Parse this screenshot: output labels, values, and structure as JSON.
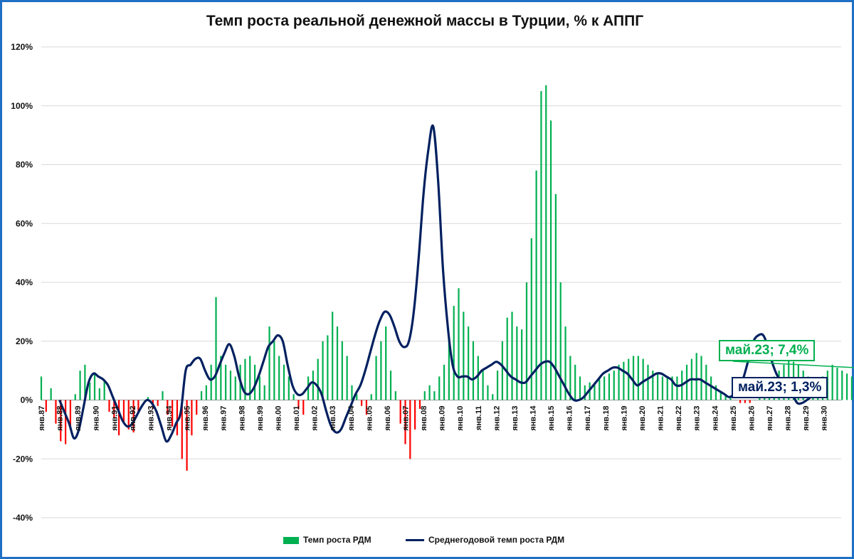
{
  "chart_data": {
    "type": "bar+line",
    "title": "Темп роста реальной денежной массы в Турции, % к АППГ",
    "ylim": [
      -40,
      120
    ],
    "y_ticks": [
      "-40%",
      "-20%",
      "0%",
      "20%",
      "40%",
      "60%",
      "80%",
      "100%",
      "120%"
    ],
    "x_tick_labels": [
      "янв.87",
      "янв.88",
      "янв.89",
      "янв.90",
      "янв.91",
      "янв.92",
      "янв.93",
      "янв.94",
      "янв.95",
      "янв.96",
      "янв.97",
      "янв.98",
      "янв.99",
      "янв.00",
      "янв.01",
      "янв.02",
      "янв.03",
      "янв.04",
      "янв.05",
      "янв.06",
      "янв.07",
      "янв.08",
      "янв.09",
      "янв.10",
      "янв.11",
      "янв.12",
      "янв.13",
      "янв.14",
      "янв.15",
      "янв.16",
      "янв.17",
      "янв.18",
      "янв.19",
      "янв.20",
      "янв.21",
      "янв.22",
      "янв.23",
      "янв.24",
      "янв.25",
      "янв.26",
      "янв.27",
      "янв.28",
      "янв.29",
      "янв.30"
    ],
    "bar_colors": {
      "positive": "#00b050",
      "negative": "#ff0000"
    },
    "line_color": "#002060",
    "x_start": "янв.87",
    "series": [
      {
        "name": "Темп роста РДМ",
        "type": "bar",
        "values": [
          8,
          -4,
          4,
          -8,
          -14,
          -15,
          -10,
          2,
          10,
          12,
          6,
          9,
          4,
          7,
          -4,
          -6,
          -12,
          -8,
          -10,
          -11,
          -4,
          0,
          1,
          -3,
          -2,
          3,
          -5,
          -9,
          -12,
          -20,
          -24,
          -12,
          -5,
          3,
          5,
          12,
          35,
          15,
          12,
          10,
          8,
          12,
          14,
          15,
          12,
          8,
          5,
          25,
          20,
          15,
          12,
          8,
          2,
          -3,
          -5,
          8,
          10,
          14,
          20,
          22,
          30,
          25,
          20,
          15,
          5,
          2,
          -2,
          -5,
          2,
          15,
          20,
          25,
          10,
          3,
          -8,
          -15,
          -20,
          -10,
          -3,
          3,
          5,
          3,
          8,
          12,
          20,
          32,
          38,
          30,
          25,
          20,
          15,
          10,
          5,
          2,
          10,
          20,
          28,
          30,
          25,
          24,
          40,
          55,
          78,
          105,
          107,
          95,
          70,
          40,
          25,
          15,
          12,
          8,
          5,
          6,
          6,
          7,
          8,
          9,
          10,
          12,
          13,
          14,
          15,
          15,
          14,
          12,
          10,
          9,
          8,
          8,
          8,
          8,
          10,
          12,
          14,
          16,
          15,
          12,
          8,
          5,
          3,
          2,
          1,
          0,
          -1,
          -1,
          -1,
          0,
          2,
          4,
          6,
          8,
          10,
          12,
          14,
          13,
          12,
          10,
          8,
          7,
          7,
          8,
          10,
          12,
          11,
          10,
          9,
          8,
          7,
          6,
          6,
          7,
          8,
          8,
          7,
          7,
          6,
          5,
          4,
          3,
          -4,
          2,
          3,
          5,
          8,
          12,
          15,
          20,
          26,
          30,
          32,
          27,
          20,
          12,
          8,
          6,
          20,
          8,
          5,
          3,
          -10,
          0,
          4,
          6,
          7.4
        ]
      },
      {
        "name": "Среднегодовой темп роста РДМ",
        "type": "line",
        "x_start": "янв.88",
        "values": [
          0,
          -4,
          -8,
          -13,
          -10,
          -2,
          6,
          9,
          8,
          7,
          5,
          1,
          -3,
          -7,
          -9,
          -8,
          -5,
          -2,
          0,
          -1,
          -4,
          -9,
          -14,
          -12,
          -8,
          -4,
          10,
          12,
          14,
          14,
          10,
          7,
          8,
          12,
          16,
          19,
          15,
          8,
          3,
          2,
          4,
          8,
          13,
          18,
          20,
          22,
          20,
          12,
          5,
          2,
          2,
          4,
          6,
          5,
          2,
          -4,
          -9,
          -11,
          -10,
          -6,
          -2,
          2,
          5,
          10,
          16,
          22,
          27,
          30,
          29,
          25,
          20,
          18,
          20,
          30,
          48,
          70,
          85,
          93,
          75,
          45,
          25,
          12,
          8,
          8,
          8,
          7,
          8,
          10,
          11,
          12,
          13,
          12,
          10,
          8,
          7,
          6,
          6,
          8,
          10,
          12,
          13,
          13,
          11,
          8,
          5,
          2,
          0,
          0,
          1,
          3,
          5,
          7,
          9,
          10,
          11,
          11,
          10,
          9,
          7,
          5,
          6,
          7,
          8,
          9,
          9,
          8,
          7,
          5,
          5,
          6,
          7,
          7,
          7,
          6,
          5,
          4,
          3,
          2,
          1,
          2,
          4,
          8,
          14,
          20,
          22,
          22,
          18,
          12,
          8,
          6,
          4,
          2,
          -1,
          -1,
          0,
          1.3
        ]
      }
    ],
    "annotations": [
      "май.23; 7,4%",
      "май.23; 1,3%"
    ],
    "legend_position": "bottom"
  }
}
